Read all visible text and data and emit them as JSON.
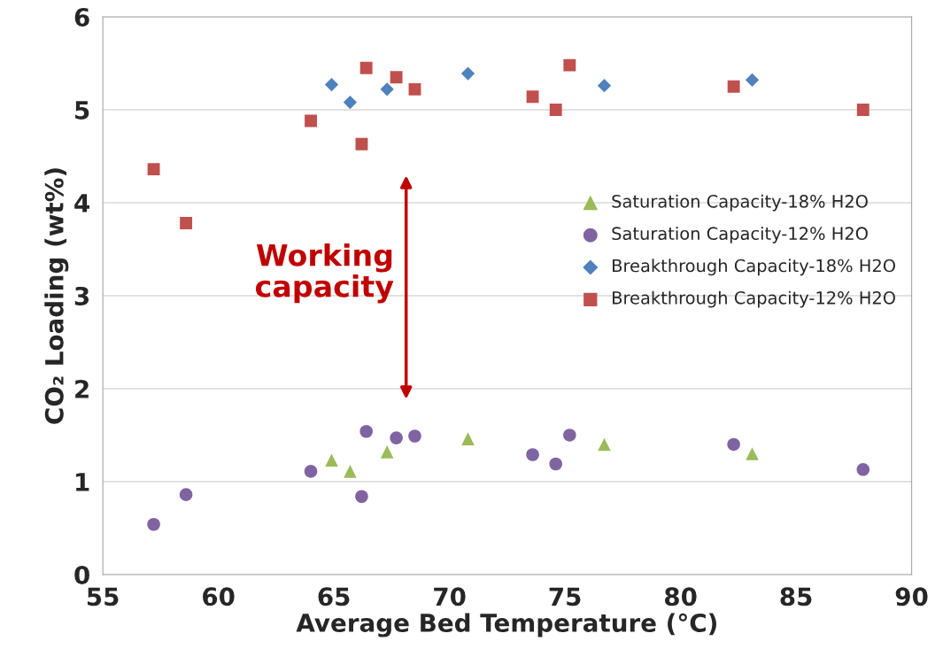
{
  "chart_data": {
    "type": "scatter",
    "xlabel": "Average Bed Temperature (°C)",
    "ylabel": "CO₂ Loading (wt%)",
    "xlim": [
      55,
      90
    ],
    "xticks": [
      55,
      60,
      65,
      70,
      75,
      80,
      85,
      90
    ],
    "ylim": [
      0,
      6
    ],
    "yticks": [
      0,
      1,
      2,
      3,
      4,
      5,
      6
    ],
    "grid": "y",
    "legend": "right",
    "series": [
      {
        "name": "Saturation Capacity-18% H2O",
        "color": "#9bbb59",
        "marker": "triangle",
        "x": [
          64.9,
          65.7,
          67.3,
          70.8,
          76.7,
          83.1
        ],
        "values": [
          1.23,
          1.11,
          1.32,
          1.46,
          1.4,
          1.3
        ]
      },
      {
        "name": "Saturation Capacity-12% H2O",
        "color": "#8064a2",
        "marker": "circle",
        "x": [
          57.2,
          58.6,
          64.0,
          66.2,
          66.4,
          67.7,
          68.5,
          73.6,
          74.6,
          75.2,
          82.3,
          87.9
        ],
        "values": [
          0.54,
          0.86,
          1.11,
          0.84,
          1.54,
          1.47,
          1.49,
          1.29,
          1.19,
          1.5,
          1.4,
          1.13
        ]
      },
      {
        "name": "Breakthrough Capacity-18% H2O",
        "color": "#4f81bd",
        "marker": "diamond",
        "x": [
          64.9,
          65.7,
          67.3,
          70.8,
          76.7,
          83.1
        ],
        "values": [
          5.27,
          5.08,
          5.22,
          5.39,
          5.26,
          5.32
        ]
      },
      {
        "name": "Breakthrough Capacity-12% H2O",
        "color": "#c0504d",
        "marker": "square",
        "x": [
          57.2,
          58.6,
          64.0,
          66.2,
          66.4,
          67.7,
          68.5,
          73.6,
          74.6,
          75.2,
          82.3,
          87.9
        ],
        "values": [
          4.36,
          3.78,
          4.88,
          4.63,
          5.45,
          5.35,
          5.22,
          5.14,
          5.0,
          5.48,
          5.25,
          5.0
        ]
      }
    ],
    "annotations": [
      "Working\ncapacity"
    ]
  }
}
